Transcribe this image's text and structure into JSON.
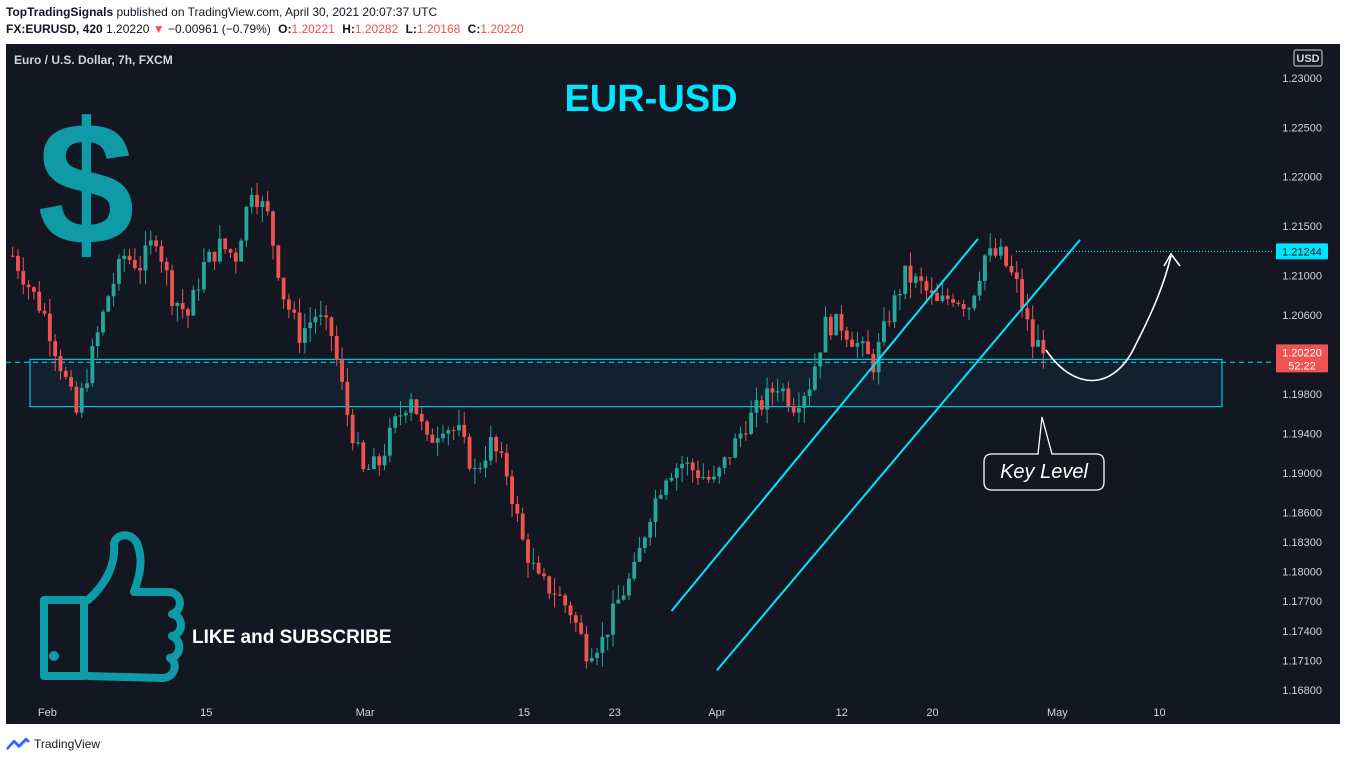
{
  "header": {
    "author": "TopTradingSignals",
    "published_text": "published on TradingView.com, April 30, 2021 20:07:37 UTC",
    "symbol": "FX:EURUSD, 420",
    "last": "1.20220",
    "change_arrow": "▼",
    "change": "−0.00961 (−0.79%)",
    "o_label": "O:",
    "o_value": "1.20221",
    "h_label": "H:",
    "h_value": "1.20282",
    "l_label": "L:",
    "l_value": "1.20168",
    "c_label": "C:",
    "c_value": "1.20220"
  },
  "chart_title": "Euro / U.S. Dollar, 7h, FXCM",
  "currency_badge": "USD",
  "overlay": {
    "big_title": "EUR-USD",
    "dollar_symbol": "$",
    "like_text": "LIKE and SUBSCRIBE",
    "key_level_text": "Key Level"
  },
  "footer": {
    "brand": "TradingView",
    "logo_icon": "tradingview-logo-icon"
  },
  "colors": {
    "background": "#131722",
    "up": "#26a69a",
    "down": "#ef5350",
    "accent": "#00e5ff",
    "dollar": "#0e9aa7",
    "grid_text": "#d1d4dc"
  },
  "chart_data": {
    "type": "candlestick",
    "y_ticks": [
      "1.23000",
      "1.22500",
      "1.22000",
      "1.21500",
      "1.21000",
      "1.20600",
      "1.20220",
      "1.19800",
      "1.19400",
      "1.19000",
      "1.18600",
      "1.18300",
      "1.18000",
      "1.17700",
      "1.17400",
      "1.17100",
      "1.16800"
    ],
    "y_tick_values": [
      1.23,
      1.225,
      1.22,
      1.215,
      1.21,
      1.206,
      1.2022,
      1.198,
      1.194,
      1.19,
      1.186,
      1.183,
      1.18,
      1.177,
      1.174,
      1.171,
      1.168
    ],
    "ylim": [
      1.166,
      1.234
    ],
    "x_ticks": [
      "Feb",
      "15",
      "Mar",
      "15",
      "23",
      "Apr",
      "12",
      "20",
      "May",
      "10"
    ],
    "dashed_level_value": 1.2012,
    "high_price_label": "1.21244",
    "high_price_value": 1.21244,
    "last_price_label": "1.20220",
    "countdown_label": "52:22",
    "key_level_zone": [
      1.1967,
      1.2015
    ],
    "channel": {
      "upper": [
        [
          "2021-03-28",
          1.176
        ],
        [
          "2021-04-24",
          1.2137
        ]
      ],
      "lower": [
        [
          "2021-04-01",
          1.17
        ],
        [
          "2021-05-03",
          1.2136
        ]
      ]
    },
    "candle_waypoints": [
      [
        1.212,
        1.213
      ],
      [
        1.209,
        1.21
      ],
      [
        1.206,
        1.205
      ],
      [
        1.201,
        1.199
      ],
      [
        1.196,
        1.196
      ],
      [
        1.202,
        1.205
      ],
      [
        1.208,
        1.21
      ],
      [
        1.212,
        1.2125
      ],
      [
        1.211,
        1.212
      ],
      [
        1.214,
        1.215
      ],
      [
        1.208,
        1.205
      ],
      [
        1.206,
        1.208
      ],
      [
        1.211,
        1.214
      ],
      [
        1.213,
        1.215
      ],
      [
        1.212,
        1.214
      ],
      [
        1.219,
        1.222
      ],
      [
        1.216,
        1.214
      ],
      [
        1.208,
        1.206
      ],
      [
        1.204,
        1.202
      ],
      [
        1.206,
        1.208
      ],
      [
        1.204,
        1.2
      ],
      [
        1.196,
        1.192
      ],
      [
        1.19,
        1.186
      ],
      [
        1.191,
        1.193
      ],
      [
        1.195,
        1.197
      ],
      [
        1.198,
        1.194
      ],
      [
        1.193,
        1.192
      ],
      [
        1.195,
        1.1975
      ],
      [
        1.194,
        1.192
      ],
      [
        1.19,
        1.192
      ],
      [
        1.193,
        1.1945
      ],
      [
        1.19,
        1.188
      ],
      [
        1.183,
        1.181
      ],
      [
        1.179,
        1.177
      ],
      [
        1.178,
        1.178
      ],
      [
        1.176,
        1.174
      ],
      [
        1.172,
        1.171
      ],
      [
        1.173,
        1.175
      ],
      [
        1.177,
        1.176
      ],
      [
        1.18,
        1.182
      ],
      [
        1.186,
        1.188
      ],
      [
        1.19,
        1.192
      ],
      [
        1.191,
        1.189
      ],
      [
        1.19,
        1.191
      ],
      [
        1.189,
        1.188
      ],
      [
        1.192,
        1.194
      ],
      [
        1.195,
        1.196
      ],
      [
        1.197,
        1.198
      ],
      [
        1.199,
        1.1985
      ],
      [
        1.197,
        1.196
      ],
      [
        1.199,
        1.202
      ],
      [
        1.205,
        1.207
      ],
      [
        1.205,
        1.204
      ],
      [
        1.203,
        1.202
      ],
      [
        1.201,
        1.204
      ],
      [
        1.206,
        1.208
      ],
      [
        1.21,
        1.211
      ],
      [
        1.209,
        1.208
      ],
      [
        1.207,
        1.209
      ],
      [
        1.208,
        1.206
      ],
      [
        1.207,
        1.21
      ],
      [
        1.212,
        1.2125
      ],
      [
        1.212,
        1.2115
      ],
      [
        1.209,
        1.205
      ],
      [
        1.203,
        1.2022
      ]
    ]
  }
}
